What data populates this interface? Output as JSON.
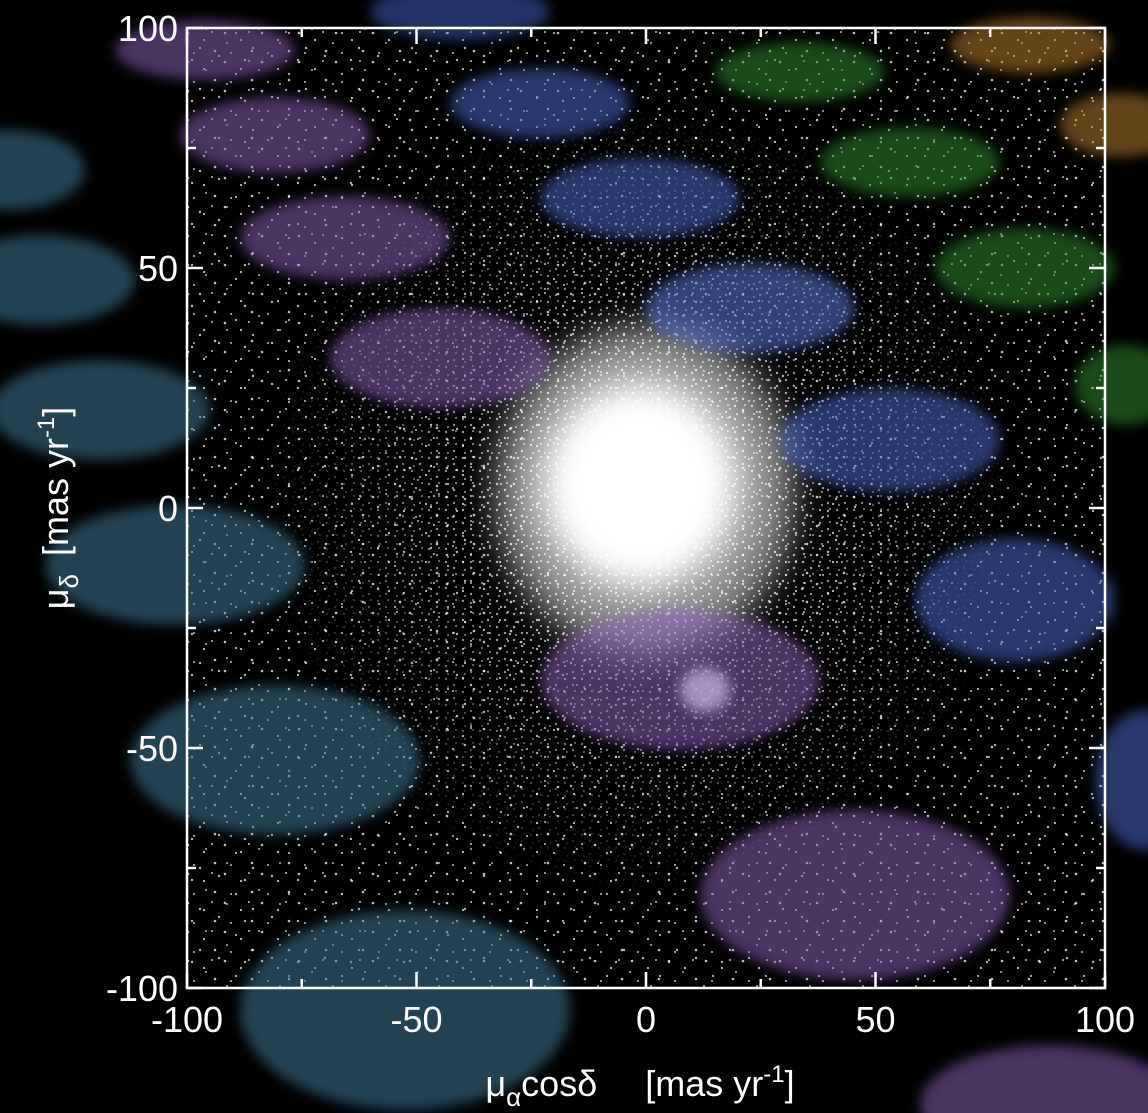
{
  "chart_data": {
    "type": "scatter",
    "x_label_parts": [
      "μ",
      "α",
      "cosδ",
      "[mas yr",
      "-1",
      "]"
    ],
    "y_label_parts": [
      "μ",
      "δ",
      "[mas yr",
      "-1",
      "]"
    ],
    "xlim": [
      -100,
      100
    ],
    "ylim": [
      -100,
      100
    ],
    "xticks": [
      -100,
      -50,
      0,
      50,
      100
    ],
    "yticks": [
      -100,
      -50,
      0,
      50,
      100
    ],
    "x_minor_ticks": [
      -75,
      -25,
      25,
      75
    ],
    "y_minor_ticks": [
      -75,
      -25,
      25,
      75
    ],
    "color": "#ffffff",
    "background": "#000000"
  }
}
